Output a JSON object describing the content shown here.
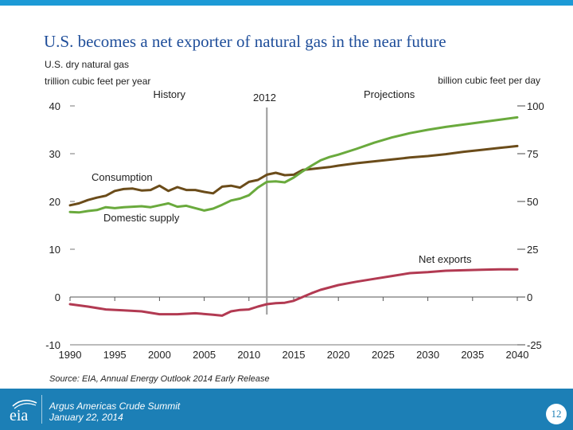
{
  "page": {
    "title": "U.S. becomes a net exporter of natural gas in the near future"
  },
  "chart_data": {
    "type": "line",
    "left_axis_label_line1": "U.S. dry natural gas",
    "left_axis_label_line2": "trillion cubic feet per year",
    "right_axis_label": "billion cubic feet per day",
    "history_label": "History",
    "divider_year_label": "2012",
    "projections_label": "Projections",
    "divider_year": 2012,
    "xlim": [
      1990,
      2040
    ],
    "ylim": [
      -10,
      40
    ],
    "x_ticks": [
      1990,
      1995,
      2000,
      2005,
      2010,
      2015,
      2020,
      2025,
      2030,
      2035,
      2040
    ],
    "y_ticks": [
      -10,
      0,
      10,
      20,
      30,
      40
    ],
    "y2_ticks": [
      -25,
      0,
      25,
      50,
      75,
      100
    ],
    "y2_scale": 2.5,
    "grid": false,
    "series": [
      {
        "name": "Consumption",
        "color": "#6b4c1a",
        "x": [
          1990,
          1991,
          1992,
          1993,
          1994,
          1995,
          1996,
          1997,
          1998,
          1999,
          2000,
          2001,
          2002,
          2003,
          2004,
          2005,
          2006,
          2007,
          2008,
          2009,
          2010,
          2011,
          2012,
          2013,
          2014,
          2015,
          2016,
          2017,
          2018,
          2019,
          2020,
          2022,
          2024,
          2026,
          2028,
          2030,
          2032,
          2034,
          2036,
          2038,
          2040
        ],
        "values": [
          19.2,
          19.6,
          20.3,
          20.8,
          21.2,
          22.2,
          22.6,
          22.7,
          22.3,
          22.4,
          23.3,
          22.2,
          23.0,
          22.4,
          22.4,
          22.0,
          21.7,
          23.1,
          23.3,
          22.9,
          24.1,
          24.5,
          25.6,
          26.0,
          25.5,
          25.6,
          26.6,
          26.8,
          27.0,
          27.2,
          27.5,
          28.0,
          28.4,
          28.8,
          29.2,
          29.5,
          29.9,
          30.4,
          30.8,
          31.2,
          31.6
        ]
      },
      {
        "name": "Domestic supply",
        "color": "#6aaa3d",
        "x": [
          1990,
          1991,
          1992,
          1993,
          1994,
          1995,
          1996,
          1997,
          1998,
          1999,
          2000,
          2001,
          2002,
          2003,
          2004,
          2005,
          2006,
          2007,
          2008,
          2009,
          2010,
          2011,
          2012,
          2013,
          2014,
          2015,
          2016,
          2017,
          2018,
          2019,
          2020,
          2022,
          2024,
          2026,
          2028,
          2030,
          2032,
          2034,
          2036,
          2038,
          2040
        ],
        "values": [
          17.8,
          17.7,
          18.0,
          18.2,
          18.8,
          18.6,
          18.8,
          18.9,
          19.0,
          18.8,
          19.2,
          19.6,
          18.9,
          19.1,
          18.6,
          18.1,
          18.5,
          19.3,
          20.2,
          20.6,
          21.3,
          22.9,
          24.1,
          24.2,
          24.0,
          25.0,
          26.3,
          27.5,
          28.6,
          29.3,
          29.8,
          31.0,
          32.3,
          33.4,
          34.3,
          35.0,
          35.6,
          36.1,
          36.6,
          37.1,
          37.6
        ]
      },
      {
        "name": "Net exports",
        "color": "#b23a52",
        "x": [
          1990,
          1992,
          1994,
          1996,
          1998,
          2000,
          2002,
          2004,
          2006,
          2007,
          2008,
          2009,
          2010,
          2011,
          2012,
          2013,
          2014,
          2015,
          2016,
          2017,
          2018,
          2020,
          2022,
          2024,
          2026,
          2028,
          2030,
          2032,
          2034,
          2036,
          2038,
          2040
        ],
        "values": [
          -1.5,
          -2.0,
          -2.6,
          -2.8,
          -3.0,
          -3.6,
          -3.6,
          -3.4,
          -3.7,
          -3.9,
          -3.0,
          -2.7,
          -2.6,
          -2.0,
          -1.5,
          -1.3,
          -1.2,
          -0.8,
          0.0,
          0.8,
          1.5,
          2.5,
          3.2,
          3.8,
          4.4,
          5.0,
          5.2,
          5.5,
          5.6,
          5.7,
          5.8,
          5.8
        ]
      }
    ]
  },
  "source": "Source:  EIA, Annual Energy Outlook 2014 Early Release",
  "footer": {
    "org": "eia",
    "event_line1": "Argus Americas Crude Summit",
    "event_line2": "January 22, 2014",
    "page_number": "12"
  }
}
